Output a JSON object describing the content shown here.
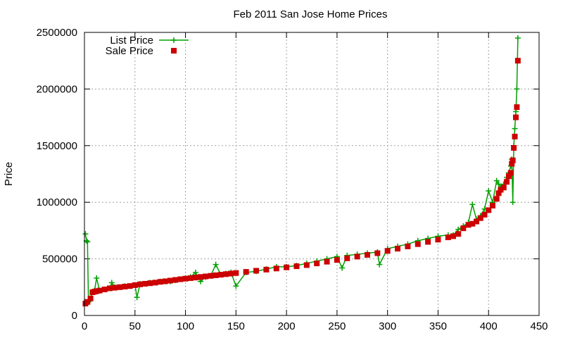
{
  "chart_data": {
    "type": "line",
    "title": "Feb 2011 San Jose Home Prices",
    "xlabel": "",
    "ylabel": "Price",
    "xlim": [
      0,
      450
    ],
    "ylim": [
      0,
      2500000
    ],
    "xticks": [
      0,
      50,
      100,
      150,
      200,
      250,
      300,
      350,
      400,
      450
    ],
    "yticks": [
      0,
      500000,
      1000000,
      1500000,
      2000000,
      2500000
    ],
    "grid": true,
    "legend_position": "top-left",
    "series": [
      {
        "name": "List Price",
        "style": "line with plus markers",
        "color": "#00a000",
        "x": [
          1,
          2,
          3,
          4,
          5,
          8,
          10,
          12,
          15,
          18,
          20,
          25,
          27,
          30,
          35,
          40,
          45,
          50,
          52,
          55,
          60,
          65,
          70,
          75,
          80,
          85,
          90,
          95,
          100,
          105,
          110,
          115,
          120,
          125,
          130,
          135,
          140,
          145,
          150,
          160,
          170,
          180,
          190,
          200,
          210,
          220,
          230,
          240,
          250,
          255,
          260,
          270,
          280,
          290,
          292,
          300,
          310,
          320,
          330,
          340,
          350,
          360,
          365,
          370,
          375,
          380,
          384,
          388,
          392,
          396,
          400,
          404,
          408,
          410,
          412,
          415,
          418,
          420,
          422,
          423,
          424,
          425,
          426,
          427,
          428,
          429
        ],
        "values": [
          720000,
          660000,
          650000,
          120000,
          130000,
          210000,
          220000,
          330000,
          220000,
          230000,
          230000,
          240000,
          290000,
          250000,
          250000,
          260000,
          260000,
          270000,
          160000,
          280000,
          280000,
          290000,
          290000,
          300000,
          300000,
          300000,
          310000,
          320000,
          330000,
          340000,
          380000,
          300000,
          340000,
          350000,
          450000,
          360000,
          370000,
          380000,
          260000,
          380000,
          390000,
          410000,
          430000,
          430000,
          440000,
          460000,
          480000,
          500000,
          520000,
          420000,
          530000,
          540000,
          550000,
          560000,
          450000,
          590000,
          610000,
          630000,
          660000,
          680000,
          700000,
          710000,
          710000,
          760000,
          790000,
          820000,
          980000,
          850000,
          880000,
          940000,
          1100000,
          1000000,
          1190000,
          1160000,
          1130000,
          1160000,
          1220000,
          1260000,
          1320000,
          1380000,
          1000000,
          1500000,
          1650000,
          1800000,
          2000000,
          2450000
        ]
      },
      {
        "name": "Sale Price",
        "style": "square markers",
        "color": "#cc0000",
        "x": [
          1,
          3,
          6,
          8,
          10,
          12,
          15,
          20,
          25,
          30,
          35,
          40,
          45,
          50,
          55,
          60,
          65,
          70,
          75,
          80,
          85,
          90,
          95,
          100,
          105,
          110,
          115,
          120,
          125,
          130,
          135,
          140,
          145,
          150,
          160,
          170,
          180,
          190,
          200,
          210,
          220,
          230,
          240,
          250,
          260,
          270,
          280,
          290,
          300,
          310,
          320,
          330,
          340,
          350,
          360,
          365,
          370,
          375,
          380,
          384,
          388,
          392,
          396,
          400,
          404,
          408,
          410,
          412,
          415,
          418,
          420,
          422,
          423,
          424,
          425,
          426,
          427,
          428,
          429
        ],
        "values": [
          105000,
          120000,
          150000,
          205000,
          210000,
          215000,
          220000,
          230000,
          240000,
          245000,
          250000,
          255000,
          260000,
          268000,
          275000,
          280000,
          285000,
          290000,
          297000,
          302000,
          308000,
          314000,
          320000,
          325000,
          330000,
          335000,
          340000,
          345000,
          350000,
          355000,
          360000,
          365000,
          370000,
          375000,
          385000,
          395000,
          405000,
          415000,
          425000,
          435000,
          445000,
          460000,
          475000,
          490000,
          505000,
          520000,
          535000,
          550000,
          570000,
          590000,
          610000,
          630000,
          650000,
          670000,
          690000,
          700000,
          720000,
          770000,
          800000,
          810000,
          830000,
          860000,
          890000,
          930000,
          970000,
          1030000,
          1080000,
          1110000,
          1130000,
          1180000,
          1230000,
          1260000,
          1340000,
          1370000,
          1480000,
          1580000,
          1750000,
          1840000,
          2250000
        ]
      }
    ]
  }
}
